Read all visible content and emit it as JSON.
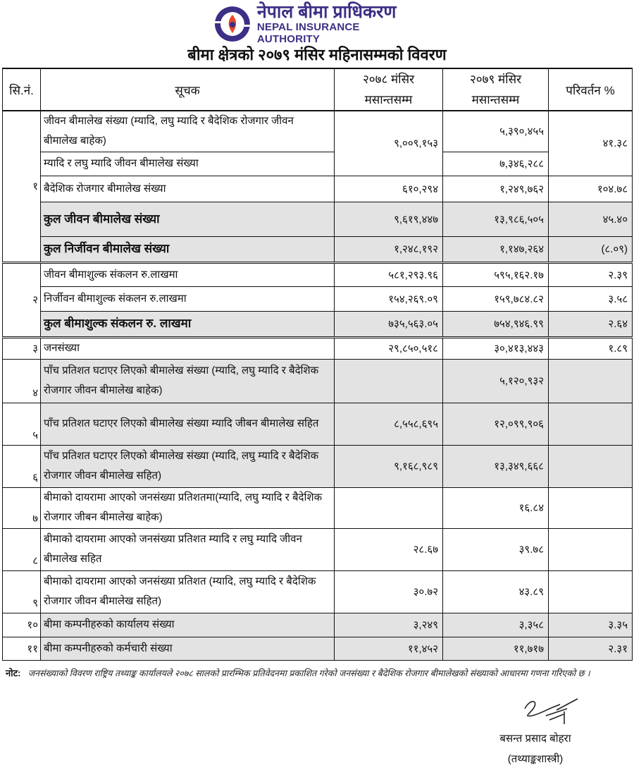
{
  "header": {
    "logo_text_np": "नेपाल बीमा प्राधिकरण",
    "logo_text_en": "NEPAL INSURANCE AUTHORITY",
    "brand_color": "#3b2f86",
    "accent_color": "#e8482a",
    "title": "बीमा क्षेत्रको २०७९ मंसिर  महिनासम्मको विवरण"
  },
  "table": {
    "columns": {
      "sn": "सि.नं.",
      "indicator": "सूचक",
      "c2078_line1": "२०७८ मंसिर",
      "c2078_line2": "मसान्तसम्म",
      "c2079_line1": "२०७९ मंसिर",
      "c2079_line2": "मसान्तसम्म",
      "change": "परिवर्तन %"
    },
    "rows": [
      {
        "sn": "१",
        "indicator": "जीवन बीमालेख संख्या (म्यादि, लघु म्यादि  र बैदेशिक रोजगार जीवन बीमालेख बाहेक)",
        "v2078": "९,००९,१५३",
        "v2079": "५,३९०,४५५",
        "change": "४१.३८"
      },
      {
        "indicator": "म्यादि  र लघु म्यादि जीवन बीमालेख संख्या",
        "v2079": "७,३४६,२८८"
      },
      {
        "indicator": "बैदेशिक रोजगार बीमालेख संख्या",
        "v2078": "६१०,२९४",
        "v2079": "१,२४९,७६२",
        "change": "१०४.७८"
      },
      {
        "indicator": "कुल जीवन बीमालेख संख्या",
        "v2078": "९,६१९,४४७",
        "v2079": "१३,९८६,५०५",
        "change": "४५.४०"
      },
      {
        "indicator": "कुल निर्जीवन बीमालेख संख्या",
        "v2078": "१,२४८,१९२",
        "v2079": "१,१४७,२६४",
        "change": "(८.०९)"
      },
      {
        "sn": "२",
        "indicator": "जीवन बीमाशुल्क संकलन रु.लाखमा",
        "v2078": "५८१,२९३.९६",
        "v2079": "५९५,१६२.१७",
        "change": "२.३९"
      },
      {
        "indicator": "निर्जीवन बीमाशुल्क संकलन रु.लाखमा",
        "v2078": "१५४,२६९.०९",
        "v2079": "१५९,७८४.८२",
        "change": "३.५८"
      },
      {
        "indicator": "कुल बीमाशुल्क संकलन रु. लाखमा",
        "v2078": "७३५,५६३.०५",
        "v2079": "७५४,९४६.९९",
        "change": "२.६४"
      },
      {
        "sn": "३",
        "indicator": "जनसंख्या",
        "v2078": "२९,८५०,५१८",
        "v2079": "३०,४१३,४४३",
        "change": "१.८९"
      },
      {
        "sn": "४",
        "indicator": "पाँच प्रतिशत घटाएर लिएको बीमालेख संख्या (म्यादि, लघु म्यादि  र बैदेशिक रोजगार जीवन बीमालेख बाहेक)",
        "v2079": "५,१२०,९३२"
      },
      {
        "sn": "५",
        "indicator": "पाँच प्रतिशत घटाएर लिएको बीमालेख संख्या म्यादि  जीबन बीमालेख सहित",
        "v2078": "८,५५८,६९५",
        "v2079": "१२,०९९,९०६"
      },
      {
        "sn": "६",
        "indicator": "पाँच प्रतिशत घटाएर लिएको बीमालेख संख्या (म्यादि, लघु म्यादि  र बैदेशिक रोजगार जीवन बीमालेख सहित)",
        "v2078": "९,१६८,९८९",
        "v2079": "१३,३४९,६६८"
      },
      {
        "sn": "७",
        "indicator": "बीमाको दायरामा आएको जनसंख्या प्रतिशतमा(म्यादि, लघु म्यादि  र बैदेशिक रोजगार जीबन बीमालेख बाहेक)",
        "v2079": "१६.८४"
      },
      {
        "sn": "८",
        "indicator": "बीमाको दायरामा आएको जनसंख्या प्रतिशत म्यादि र लघु म्यादि  जीवन बीमालेख सहित",
        "v2078": "२८.६७",
        "v2079": "३९.७८"
      },
      {
        "sn": "९",
        "indicator": "बीमाको दायरामा आएको जनसंख्या प्रतिशत  (म्यादि, लघु म्यादि  र बैदेशिक रोजगार जीवन बीमालेख सहित)",
        "v2078": "३०.७२",
        "v2079": "४३.८९"
      },
      {
        "sn": "१०",
        "indicator": "बीमा कम्पनीहरुको कार्यालय संख्या",
        "v2078": "३,२४९",
        "v2079": "३,३५८",
        "change": "३.३५"
      },
      {
        "sn": "११",
        "indicator": "बीमा कम्पनीहरुको कर्मचारी संख्या",
        "v2078": "११,४५२",
        "v2079": "११,७१७",
        "change": "२.३१"
      }
    ]
  },
  "note": {
    "label": "नोट:",
    "text": "जनसंख्याको विवरण राष्ट्रिय तथ्याङ्क कार्यालयले २०७८ सालको प्रारम्भिक प्रतिवेदनमा प्रकाशित गरेको जनसंख्या र बैदेशिक रोजगार बीमालेखको संख्याको आधारमा गणना गरिएको छ ।"
  },
  "signature": {
    "name": "बसन्त प्रसाद बोहरा",
    "designation": "(तथ्याङ्कशास्त्री)"
  }
}
